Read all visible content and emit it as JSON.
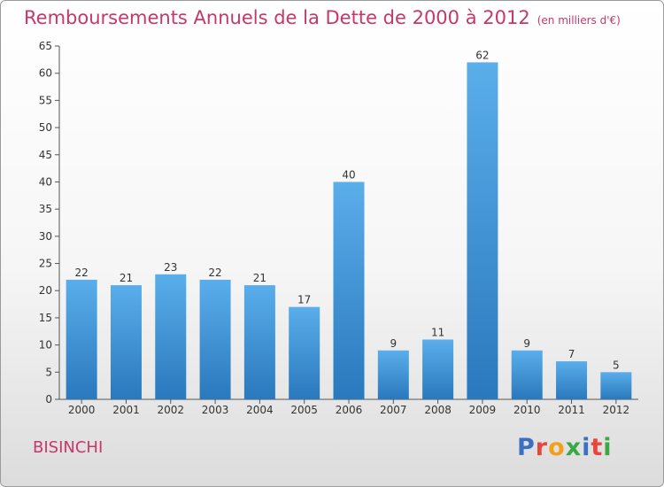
{
  "chart_data": {
    "type": "bar",
    "title": "Remboursements Annuels de la Dette de 2000 à 2012",
    "unit_label": "(en milliers d'€)",
    "categories": [
      "2000",
      "2001",
      "2002",
      "2003",
      "2004",
      "2005",
      "2006",
      "2007",
      "2008",
      "2009",
      "2010",
      "2011",
      "2012"
    ],
    "values": [
      22,
      21,
      23,
      22,
      21,
      17,
      40,
      9,
      11,
      62,
      9,
      7,
      5
    ],
    "ylim": [
      0,
      65
    ],
    "yticks": [
      0,
      5,
      10,
      15,
      20,
      25,
      30,
      35,
      40,
      45,
      50,
      55,
      60,
      65
    ],
    "grid": false,
    "data_labels": true,
    "bar_color": "#3a8fd6"
  },
  "commune": "BISINCHI",
  "logo": {
    "letters": [
      "P",
      "r",
      "o",
      "x",
      "i",
      "t",
      "i"
    ],
    "colors": [
      "#3b6fc4",
      "#e8453c",
      "#f2a01c",
      "#3aa844",
      "#3b6fc4",
      "#e8453c",
      "#3aa844"
    ]
  },
  "colors": {
    "title": "#c8366a"
  }
}
